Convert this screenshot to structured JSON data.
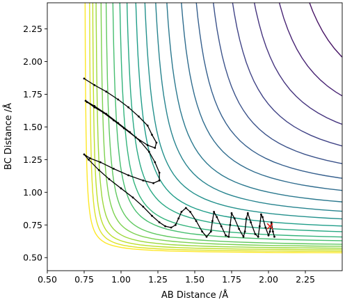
{
  "chart_data": {
    "type": "contour",
    "xlabel": "AB Distance /Å",
    "ylabel": "BC Distance /Å",
    "xlim": [
      0.5,
      2.5
    ],
    "ylim": [
      0.4,
      2.45
    ],
    "x_ticks": [
      "0.50",
      "0.75",
      "1.00",
      "1.25",
      "1.50",
      "1.75",
      "2.00",
      "2.25"
    ],
    "y_ticks": [
      "0.50",
      "0.75",
      "1.00",
      "1.25",
      "1.50",
      "1.75",
      "2.00",
      "2.25"
    ],
    "grid": false,
    "contour_colormap": "viridis",
    "contours": {
      "asymptote_x": [
        0.75,
        0.78,
        0.8,
        0.82,
        0.85,
        0.88,
        0.92,
        0.96,
        1.0,
        1.05,
        1.1,
        1.16,
        1.22,
        1.3,
        1.38,
        1.47,
        1.57,
        1.68,
        1.8,
        1.94,
        2.1
      ],
      "asymptote_y": [
        0.53,
        0.54,
        0.55,
        0.56,
        0.57,
        0.58,
        0.6,
        0.62,
        0.65,
        0.68,
        0.72,
        0.76,
        0.81,
        0.87,
        0.93,
        1.0,
        1.08,
        1.17,
        1.28,
        1.4,
        1.55
      ]
    },
    "trajectory": {
      "color": "#000000",
      "points": [
        [
          0.75,
          1.87
        ],
        [
          0.82,
          1.82
        ],
        [
          0.9,
          1.77
        ],
        [
          0.98,
          1.71
        ],
        [
          1.05,
          1.65
        ],
        [
          1.12,
          1.58
        ],
        [
          1.18,
          1.51
        ],
        [
          1.21,
          1.44
        ],
        [
          1.24,
          1.38
        ],
        [
          1.23,
          1.34
        ],
        [
          1.18,
          1.36
        ],
        [
          1.1,
          1.42
        ],
        [
          1.02,
          1.49
        ],
        [
          0.95,
          1.55
        ],
        [
          0.88,
          1.61
        ],
        [
          0.82,
          1.65
        ],
        [
          0.77,
          1.69
        ],
        [
          0.76,
          1.7
        ],
        [
          0.82,
          1.66
        ],
        [
          0.9,
          1.6
        ],
        [
          0.98,
          1.53
        ],
        [
          1.06,
          1.46
        ],
        [
          1.13,
          1.39
        ],
        [
          1.19,
          1.31
        ],
        [
          1.23,
          1.23
        ],
        [
          1.26,
          1.15
        ],
        [
          1.26,
          1.09
        ],
        [
          1.22,
          1.07
        ],
        [
          1.15,
          1.09
        ],
        [
          1.05,
          1.13
        ],
        [
          0.95,
          1.18
        ],
        [
          0.86,
          1.23
        ],
        [
          0.79,
          1.26
        ],
        [
          0.75,
          1.29
        ],
        [
          0.78,
          1.25
        ],
        [
          0.85,
          1.17
        ],
        [
          0.92,
          1.1
        ],
        [
          1.0,
          1.03
        ],
        [
          1.08,
          0.96
        ],
        [
          1.15,
          0.89
        ],
        [
          1.21,
          0.82
        ],
        [
          1.26,
          0.77
        ],
        [
          1.3,
          0.74
        ],
        [
          1.34,
          0.73
        ],
        [
          1.37,
          0.75
        ],
        [
          1.39,
          0.8
        ],
        [
          1.41,
          0.85
        ],
        [
          1.44,
          0.88
        ],
        [
          1.47,
          0.85
        ],
        [
          1.51,
          0.78
        ],
        [
          1.55,
          0.7
        ],
        [
          1.58,
          0.66
        ],
        [
          1.61,
          0.7
        ],
        [
          1.62,
          0.78
        ],
        [
          1.63,
          0.85
        ],
        [
          1.65,
          0.81
        ],
        [
          1.68,
          0.74
        ],
        [
          1.71,
          0.67
        ],
        [
          1.73,
          0.66
        ],
        [
          1.74,
          0.75
        ],
        [
          1.75,
          0.84
        ],
        [
          1.77,
          0.8
        ],
        [
          1.8,
          0.72
        ],
        [
          1.83,
          0.66
        ],
        [
          1.84,
          0.7
        ],
        [
          1.85,
          0.8
        ],
        [
          1.86,
          0.84
        ],
        [
          1.88,
          0.77
        ],
        [
          1.91,
          0.68
        ],
        [
          1.93,
          0.66
        ],
        [
          1.94,
          0.74
        ],
        [
          1.95,
          0.83
        ],
        [
          1.96,
          0.81
        ],
        [
          1.98,
          0.73
        ],
        [
          2.0,
          0.67
        ],
        [
          2.01,
          0.7
        ],
        [
          2.02,
          0.77
        ],
        [
          2.03,
          0.7
        ],
        [
          2.04,
          0.66
        ]
      ]
    },
    "marker": {
      "x": 2.01,
      "y": 0.74,
      "symbol": "x",
      "color": "#e8231d"
    }
  }
}
